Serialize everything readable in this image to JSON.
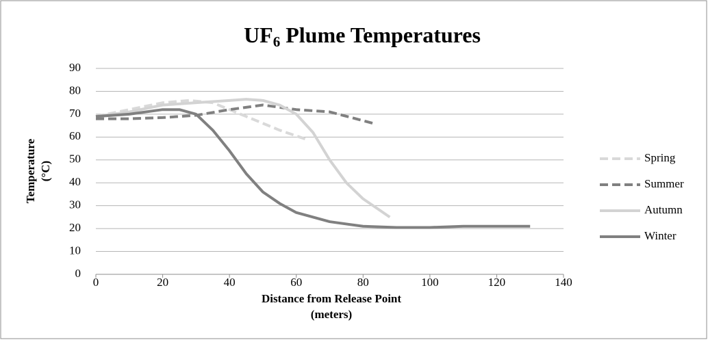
{
  "chart_data": {
    "type": "line",
    "title": [
      "UF",
      "6",
      " Plume Temperatures"
    ],
    "xlabel": [
      "Distance from Release Point",
      "(meters)"
    ],
    "ylabel": [
      "Temperature",
      "(°C)"
    ],
    "xlim": [
      0,
      140
    ],
    "xticks": [
      0,
      20,
      40,
      60,
      80,
      100,
      120,
      140
    ],
    "ylim": [
      0,
      90
    ],
    "yticks": [
      0,
      10,
      20,
      30,
      40,
      50,
      60,
      70,
      80,
      90
    ],
    "grid": true,
    "legend": "right",
    "series": [
      {
        "name": "Spring",
        "color": "#d9d9d9",
        "dash": true,
        "x": [
          0,
          10,
          20,
          28,
          35,
          40,
          50,
          55,
          63
        ],
        "values": [
          69,
          72,
          75,
          76,
          75,
          72,
          66,
          63,
          59
        ]
      },
      {
        "name": "Summer",
        "color": "#808080",
        "dash": true,
        "x": [
          0,
          10,
          20,
          30,
          40,
          50,
          60,
          70,
          83
        ],
        "values": [
          68,
          68,
          68.5,
          69.5,
          72,
          74,
          72,
          71,
          66
        ]
      },
      {
        "name": "Autumn",
        "color": "#d3d3d3",
        "dash": false,
        "x": [
          0,
          10,
          20,
          30,
          40,
          45,
          50,
          55,
          60,
          65,
          70,
          75,
          80,
          88
        ],
        "values": [
          69,
          71,
          74,
          75,
          76,
          76.5,
          76,
          74,
          70,
          62,
          50,
          40,
          33,
          25
        ]
      },
      {
        "name": "Winter",
        "color": "#808080",
        "dash": false,
        "x": [
          0,
          10,
          20,
          25,
          30,
          35,
          40,
          45,
          50,
          55,
          60,
          70,
          80,
          90,
          100,
          110,
          120,
          130
        ],
        "values": [
          69,
          70,
          72,
          72,
          70,
          63,
          54,
          44,
          36,
          31,
          27,
          23,
          21,
          20.5,
          20.5,
          21,
          21,
          21
        ]
      }
    ]
  }
}
